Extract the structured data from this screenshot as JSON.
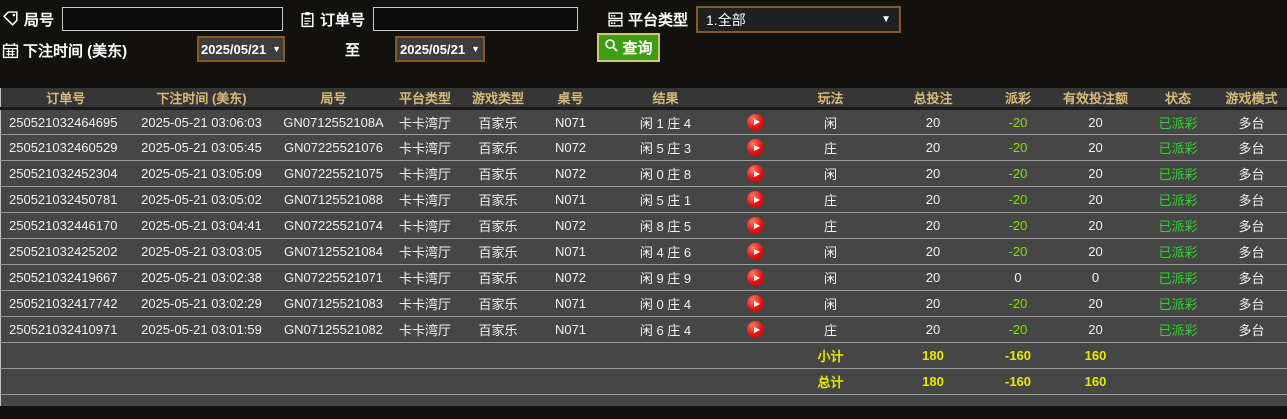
{
  "filters": {
    "game_no_label": "局号",
    "game_no_value": "",
    "order_no_label": "订单号",
    "order_no_value": "",
    "platform_label": "平台类型",
    "platform_value": "1.全部",
    "bet_time_label": "下注时间 (美东)",
    "date_from": "2025/05/21",
    "to_label": "至",
    "date_to": "2025/05/21",
    "search_label": "查询"
  },
  "table": {
    "columns": [
      "订单号",
      "下注时间 (美东)",
      "局号",
      "平台类型",
      "游戏类型",
      "桌号",
      "结果",
      "",
      "玩法",
      "总投注",
      "派彩",
      "有效投注额",
      "状态",
      "游戏模式"
    ],
    "rows": [
      {
        "order_no": "250521032464695",
        "bet_time": "2025-05-21 03:06:03",
        "game_no": "GN0712552108A",
        "platform": "卡卡湾厅",
        "game_type": "百家乐",
        "table_no": "N071",
        "result": "闲 1 庄 4",
        "play_type": "闲",
        "total_bet": "20",
        "payout": "-20",
        "valid_bet": "20",
        "status": "已派彩",
        "mode": "多台"
      },
      {
        "order_no": "250521032460529",
        "bet_time": "2025-05-21 03:05:45",
        "game_no": "GN07225521076",
        "platform": "卡卡湾厅",
        "game_type": "百家乐",
        "table_no": "N072",
        "result": "闲 5 庄 3",
        "play_type": "庄",
        "total_bet": "20",
        "payout": "-20",
        "valid_bet": "20",
        "status": "已派彩",
        "mode": "多台"
      },
      {
        "order_no": "250521032452304",
        "bet_time": "2025-05-21 03:05:09",
        "game_no": "GN07225521075",
        "platform": "卡卡湾厅",
        "game_type": "百家乐",
        "table_no": "N072",
        "result": "闲 0 庄 8",
        "play_type": "闲",
        "total_bet": "20",
        "payout": "-20",
        "valid_bet": "20",
        "status": "已派彩",
        "mode": "多台"
      },
      {
        "order_no": "250521032450781",
        "bet_time": "2025-05-21 03:05:02",
        "game_no": "GN07125521088",
        "platform": "卡卡湾厅",
        "game_type": "百家乐",
        "table_no": "N071",
        "result": "闲 5 庄 1",
        "play_type": "庄",
        "total_bet": "20",
        "payout": "-20",
        "valid_bet": "20",
        "status": "已派彩",
        "mode": "多台"
      },
      {
        "order_no": "250521032446170",
        "bet_time": "2025-05-21 03:04:41",
        "game_no": "GN07225521074",
        "platform": "卡卡湾厅",
        "game_type": "百家乐",
        "table_no": "N072",
        "result": "闲 8 庄 5",
        "play_type": "庄",
        "total_bet": "20",
        "payout": "-20",
        "valid_bet": "20",
        "status": "已派彩",
        "mode": "多台"
      },
      {
        "order_no": "250521032425202",
        "bet_time": "2025-05-21 03:03:05",
        "game_no": "GN07125521084",
        "platform": "卡卡湾厅",
        "game_type": "百家乐",
        "table_no": "N071",
        "result": "闲 4 庄 6",
        "play_type": "闲",
        "total_bet": "20",
        "payout": "-20",
        "valid_bet": "20",
        "status": "已派彩",
        "mode": "多台"
      },
      {
        "order_no": "250521032419667",
        "bet_time": "2025-05-21 03:02:38",
        "game_no": "GN07225521071",
        "platform": "卡卡湾厅",
        "game_type": "百家乐",
        "table_no": "N072",
        "result": "闲 9 庄 9",
        "play_type": "闲",
        "total_bet": "20",
        "payout": "0",
        "valid_bet": "0",
        "status": "已派彩",
        "mode": "多台"
      },
      {
        "order_no": "250521032417742",
        "bet_time": "2025-05-21 03:02:29",
        "game_no": "GN07125521083",
        "platform": "卡卡湾厅",
        "game_type": "百家乐",
        "table_no": "N071",
        "result": "闲 0 庄 4",
        "play_type": "闲",
        "total_bet": "20",
        "payout": "-20",
        "valid_bet": "20",
        "status": "已派彩",
        "mode": "多台"
      },
      {
        "order_no": "250521032410971",
        "bet_time": "2025-05-21 03:01:59",
        "game_no": "GN07125521082",
        "platform": "卡卡湾厅",
        "game_type": "百家乐",
        "table_no": "N071",
        "result": "闲 6 庄 4",
        "play_type": "庄",
        "total_bet": "20",
        "payout": "-20",
        "valid_bet": "20",
        "status": "已派彩",
        "mode": "多台"
      }
    ],
    "subtotal": {
      "label": "小计",
      "total_bet": "180",
      "payout": "-160",
      "valid_bet": "160"
    },
    "total": {
      "label": "总计",
      "total_bet": "180",
      "payout": "-160",
      "valid_bet": "160"
    }
  },
  "colors": {
    "accent-gold": "#d9ba76",
    "payout-green": "#7de300",
    "status-green": "#2fd42f",
    "summary-yellow": "#e9e900",
    "search-green": "#3f9d13",
    "search-border": "#d9c27d",
    "picker-border": "#875a21",
    "play-red": "#e41111",
    "row-bg": "#464646",
    "header-bg": "#363636",
    "page-bg": "#12110d",
    "separator": "#9a9a9a"
  }
}
